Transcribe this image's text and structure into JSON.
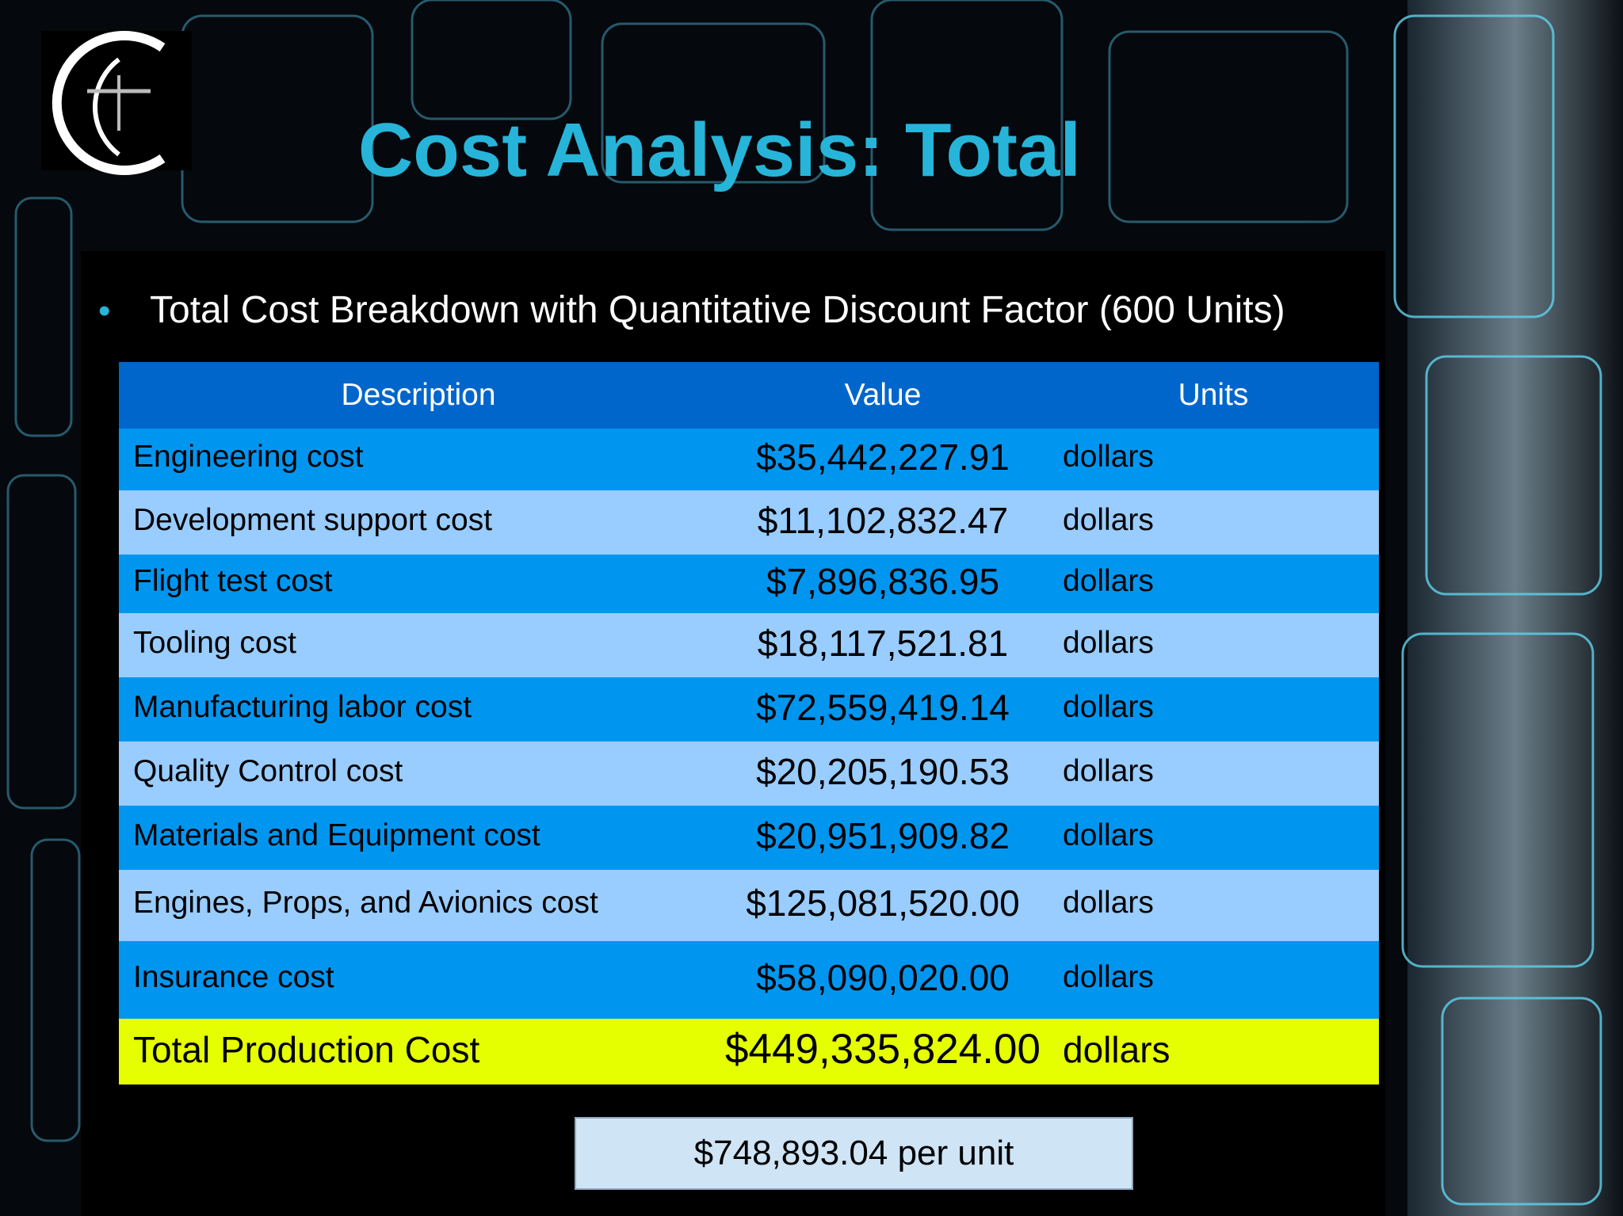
{
  "title": "Cost Analysis: Total",
  "bullet": "Total Cost Breakdown with Quantitative Discount Factor (600 Units)",
  "table": {
    "header": [
      "Description",
      "Value",
      "Units"
    ],
    "rows": [
      [
        "Engineering cost",
        "$35,442,227.91",
        "dollars"
      ],
      [
        "Development support cost",
        "$11,102,832.47",
        "dollars"
      ],
      [
        "Flight test cost",
        "$7,896,836.95",
        "dollars"
      ],
      [
        "Tooling cost",
        "$18,117,521.81",
        "dollars"
      ],
      [
        "Manufacturing labor cost",
        "$72,559,419.14",
        "dollars"
      ],
      [
        "Quality Control cost",
        "$20,205,190.53",
        "dollars"
      ],
      [
        "Materials and Equipment cost",
        "$20,951,909.82",
        "dollars"
      ],
      [
        "Engines, Props, and Avionics cost",
        "$125,081,520.00",
        "dollars"
      ],
      [
        "Insurance cost",
        "$58,090,020.00",
        "dollars"
      ]
    ],
    "total": [
      "Total Production Cost",
      "$449,335,824.00",
      "dollars"
    ]
  },
  "per_unit": "$748,893.04 per unit"
}
